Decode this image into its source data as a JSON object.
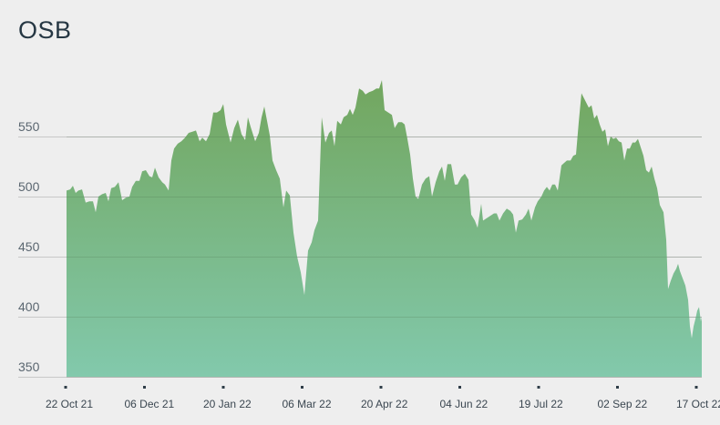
{
  "chart_data": {
    "type": "area",
    "title": "OSB",
    "xlabel": "",
    "ylabel": "",
    "ylim": [
      350,
      600
    ],
    "y_ticks": [
      350,
      400,
      450,
      500,
      550
    ],
    "x_tick_labels": [
      "22 Oct 21",
      "06 Dec 21",
      "20 Jan 22",
      "06 Mar 22",
      "20 Apr 22",
      "04 Jun 22",
      "19 Jul 22",
      "02 Sep 22",
      "17 Oct 22"
    ],
    "grid": true,
    "legend": "none",
    "colors": {
      "fill_top": "#72a65e",
      "fill_bottom": "#82c9ac",
      "grid": "#c8c8c8",
      "background": "#eeeeee"
    },
    "series": [
      {
        "name": "OSB",
        "points": [
          [
            73,
            505
          ],
          [
            77,
            506
          ],
          [
            80,
            509
          ],
          [
            83,
            503
          ],
          [
            86,
            505
          ],
          [
            90,
            506
          ],
          [
            94,
            495
          ],
          [
            98,
            496
          ],
          [
            102,
            496
          ],
          [
            105,
            487
          ],
          [
            108,
            500
          ],
          [
            112,
            502
          ],
          [
            116,
            503
          ],
          [
            119,
            496
          ],
          [
            122,
            507
          ],
          [
            126,
            508
          ],
          [
            130,
            512
          ],
          [
            134,
            497
          ],
          [
            138,
            499
          ],
          [
            142,
            500
          ],
          [
            145,
            508
          ],
          [
            149,
            513
          ],
          [
            153,
            513
          ],
          [
            156,
            521
          ],
          [
            160,
            522
          ],
          [
            164,
            517
          ],
          [
            167,
            516
          ],
          [
            170,
            524
          ],
          [
            174,
            516
          ],
          [
            178,
            512
          ],
          [
            181,
            510
          ],
          [
            185,
            505
          ],
          [
            188,
            530
          ],
          [
            191,
            540
          ],
          [
            195,
            544
          ],
          [
            199,
            546
          ],
          [
            203,
            549
          ],
          [
            207,
            553
          ],
          [
            211,
            554
          ],
          [
            215,
            555
          ],
          [
            219,
            546
          ],
          [
            222,
            549
          ],
          [
            226,
            546
          ],
          [
            230,
            552
          ],
          [
            234,
            570
          ],
          [
            238,
            570
          ],
          [
            242,
            572
          ],
          [
            245,
            577
          ],
          [
            248,
            560
          ],
          [
            253,
            545
          ],
          [
            257,
            557
          ],
          [
            261,
            564
          ],
          [
            265,
            552
          ],
          [
            269,
            547
          ],
          [
            272,
            566
          ],
          [
            275,
            558
          ],
          [
            280,
            546
          ],
          [
            284,
            553
          ],
          [
            287,
            566
          ],
          [
            290,
            575
          ],
          [
            293,
            563
          ],
          [
            296,
            551
          ],
          [
            299,
            530
          ],
          [
            303,
            522
          ],
          [
            307,
            515
          ],
          [
            311,
            491
          ],
          [
            314,
            505
          ],
          [
            318,
            501
          ],
          [
            322,
            470
          ],
          [
            326,
            450
          ],
          [
            330,
            437
          ],
          [
            334,
            418
          ],
          [
            338,
            455
          ],
          [
            342,
            462
          ],
          [
            345,
            472
          ],
          [
            349,
            480
          ],
          [
            353,
            566
          ],
          [
            357,
            545
          ],
          [
            361,
            553
          ],
          [
            364,
            555
          ],
          [
            367,
            542
          ],
          [
            370,
            563
          ],
          [
            374,
            560
          ],
          [
            377,
            566
          ],
          [
            381,
            568
          ],
          [
            384,
            573
          ],
          [
            387,
            568
          ],
          [
            390,
            574
          ],
          [
            394,
            590
          ],
          [
            398,
            588
          ],
          [
            401,
            585
          ],
          [
            405,
            587
          ],
          [
            409,
            588
          ],
          [
            413,
            590
          ],
          [
            416,
            590
          ],
          [
            419,
            597
          ],
          [
            422,
            572
          ],
          [
            426,
            570
          ],
          [
            430,
            568
          ],
          [
            433,
            557
          ],
          [
            437,
            562
          ],
          [
            441,
            562
          ],
          [
            444,
            560
          ],
          [
            447,
            548
          ],
          [
            450,
            535
          ],
          [
            453,
            515
          ],
          [
            456,
            500
          ],
          [
            459,
            498
          ],
          [
            463,
            510
          ],
          [
            467,
            515
          ],
          [
            471,
            517
          ],
          [
            474,
            500
          ],
          [
            478,
            512
          ],
          [
            482,
            521
          ],
          [
            485,
            525
          ],
          [
            488,
            513
          ],
          [
            491,
            527
          ],
          [
            495,
            527
          ],
          [
            499,
            510
          ],
          [
            502,
            510
          ],
          [
            506,
            516
          ],
          [
            510,
            519
          ],
          [
            514,
            514
          ],
          [
            517,
            485
          ],
          [
            521,
            480
          ],
          [
            524,
            474
          ],
          [
            528,
            494
          ],
          [
            530,
            480
          ],
          [
            534,
            482
          ],
          [
            538,
            484
          ],
          [
            542,
            486
          ],
          [
            545,
            486
          ],
          [
            548,
            480
          ],
          [
            552,
            486
          ],
          [
            556,
            490
          ],
          [
            560,
            488
          ],
          [
            563,
            485
          ],
          [
            566,
            470
          ],
          [
            569,
            480
          ],
          [
            573,
            481
          ],
          [
            577,
            485
          ],
          [
            580,
            490
          ],
          [
            583,
            480
          ],
          [
            587,
            491
          ],
          [
            590,
            496
          ],
          [
            594,
            500
          ],
          [
            597,
            505
          ],
          [
            600,
            508
          ],
          [
            603,
            505
          ],
          [
            606,
            510
          ],
          [
            609,
            510
          ],
          [
            612,
            505
          ],
          [
            616,
            526
          ],
          [
            619,
            528
          ],
          [
            622,
            530
          ],
          [
            626,
            530
          ],
          [
            629,
            534
          ],
          [
            632,
            535
          ],
          [
            635,
            562
          ],
          [
            638,
            586
          ],
          [
            642,
            580
          ],
          [
            646,
            574
          ],
          [
            649,
            576
          ],
          [
            652,
            565
          ],
          [
            655,
            568
          ],
          [
            658,
            560
          ],
          [
            661,
            554
          ],
          [
            664,
            556
          ],
          [
            667,
            542
          ],
          [
            670,
            550
          ],
          [
            673,
            548
          ],
          [
            676,
            549
          ],
          [
            679,
            546
          ],
          [
            682,
            545
          ],
          [
            685,
            530
          ],
          [
            688,
            540
          ],
          [
            691,
            540
          ],
          [
            694,
            545
          ],
          [
            697,
            545
          ],
          [
            700,
            548
          ],
          [
            703,
            541
          ],
          [
            706,
            534
          ],
          [
            709,
            522
          ],
          [
            712,
            520
          ],
          [
            715,
            525
          ],
          [
            718,
            515
          ],
          [
            721,
            507
          ],
          [
            724,
            493
          ],
          [
            728,
            487
          ],
          [
            731,
            464
          ],
          [
            733,
            423
          ],
          [
            736,
            430
          ],
          [
            739,
            436
          ],
          [
            742,
            440
          ],
          [
            744,
            444
          ],
          [
            746,
            438
          ],
          [
            749,
            432
          ],
          [
            752,
            426
          ],
          [
            755,
            414
          ],
          [
            757,
            392
          ],
          [
            759,
            382
          ],
          [
            761,
            392
          ],
          [
            763,
            398
          ],
          [
            765,
            405
          ],
          [
            767,
            408
          ],
          [
            769,
            396
          ],
          [
            770,
            400
          ]
        ]
      }
    ]
  }
}
